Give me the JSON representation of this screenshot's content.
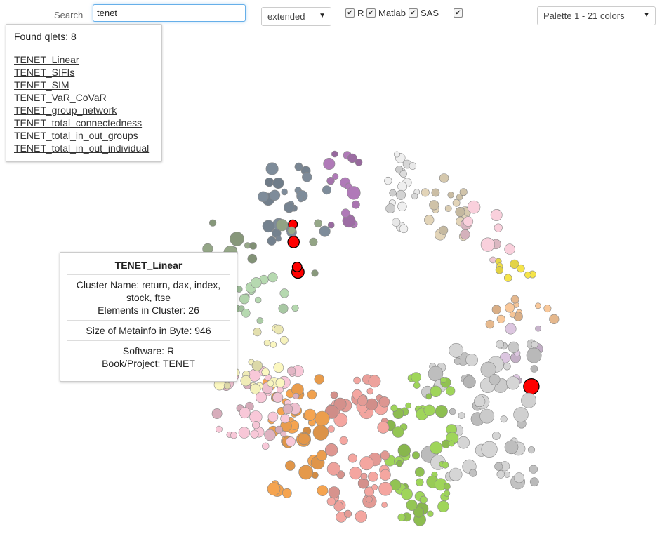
{
  "search": {
    "label": "Search",
    "value": "tenet"
  },
  "mode_select": {
    "value": "extended"
  },
  "checkboxes": [
    {
      "label": "R",
      "checked": true
    },
    {
      "label": "Matlab",
      "checked": true
    },
    {
      "label": "SAS",
      "checked": true
    },
    {
      "label": "",
      "checked": true
    }
  ],
  "palette_select": {
    "value": "Palette 1 - 21 colors"
  },
  "results": {
    "found_text": "Found qlets: 8",
    "items": [
      "TENET_Linear",
      "TENET_SIFIs",
      "TENET_SIM",
      "TENET_VaR_CoVaR",
      "TENET_group_network",
      "TENET_total_connectedness",
      "TENET_total_in_out_groups",
      "TENET_total_in_out_individual"
    ]
  },
  "tooltip": {
    "title": "TENET_Linear",
    "cluster_name_1": "Cluster Name: return, dax, index,",
    "cluster_name_2": "stock, ftse",
    "elements": "Elements in Cluster: 26",
    "metainfo": "Size of Metainfo in Byte: 946",
    "software": "Software: R",
    "project": "Book/Project: TENET"
  },
  "colors": {
    "highlight": "#ff0000",
    "search_focus": "#66afe9",
    "clusters": [
      "#7e8c9a",
      "#b07ab8",
      "#efefef",
      "#e2d4b8",
      "#f9d0dc",
      "#f5e44a",
      "#f9c89a",
      "#dcc6e0",
      "#d5d5d5",
      "#9fd55a",
      "#f4a6a0",
      "#f5a450",
      "#f8c8d8",
      "#fbf7c0",
      "#b6d9b0",
      "#96a888"
    ]
  }
}
